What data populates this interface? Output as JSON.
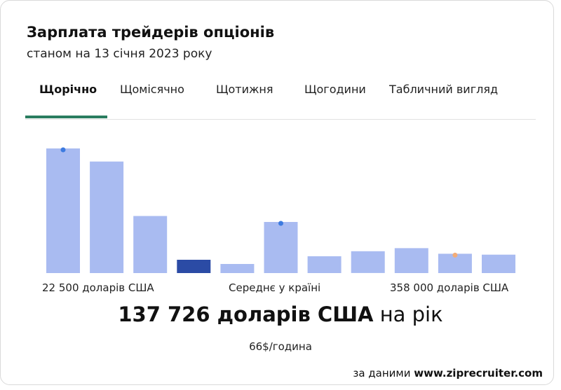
{
  "header": {
    "title": "Зарплата трейдерів опціонів",
    "subtitle": "станом на 13 січня 2023 року"
  },
  "tabs": [
    {
      "label": "Щорічно",
      "active": true
    },
    {
      "label": "Щомісячно",
      "active": false
    },
    {
      "label": "Щотижня",
      "active": false
    },
    {
      "label": "Щогодини",
      "active": false
    },
    {
      "label": "Табличний вигляд",
      "active": false
    }
  ],
  "chart_data": {
    "type": "bar",
    "values": [
      100,
      89.5,
      45.8,
      10.7,
      7.3,
      41,
      13.5,
      17.5,
      20,
      15.5,
      14.8
    ],
    "highlight_index": 3,
    "dot_markers": [
      {
        "bar_index": 0,
        "color": "#3d7be0"
      },
      {
        "bar_index": 5,
        "color": "#3d7be0"
      },
      {
        "bar_index": 9,
        "color": "#f2ac78"
      }
    ],
    "labels": {
      "min": "22 500 доларів США",
      "avg": "Середнє у країні",
      "max": "358 000 доларів США"
    },
    "bar_color": "#a9bbf1",
    "highlight_color": "#2b4ba5"
  },
  "summary": {
    "amount": "137 726 доларів США",
    "period": " на рік",
    "hourly": "66$/година"
  },
  "source": {
    "prefix": "за даними ",
    "site": "www.ziprecruiter.com"
  }
}
